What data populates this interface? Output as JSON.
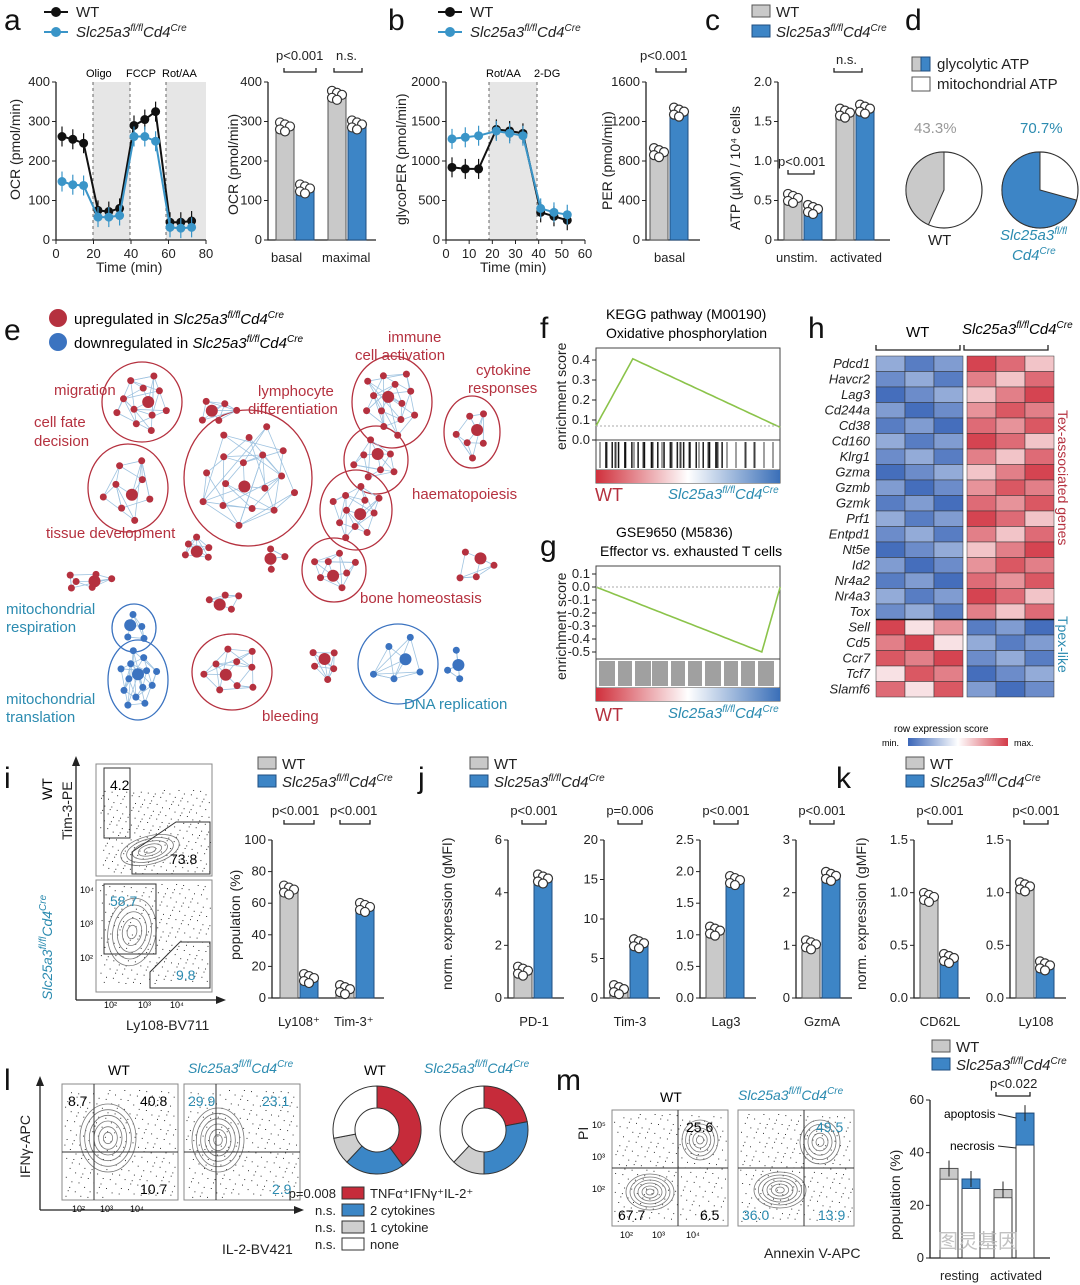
{
  "legend": {
    "wt": "WT",
    "ko": "Slc25a3",
    "ko_sup": "fl/fl",
    "ko_cre": "Cd4",
    "ko_cre_sup": "Cre"
  },
  "panels": {
    "a": {
      "label": "a",
      "line_ylabel": "OCR (pmol/min)",
      "xlabel": "Time (min)",
      "xticks": [
        "0",
        "20",
        "40",
        "60",
        "80"
      ],
      "yticks": [
        "0",
        "100",
        "200",
        "300",
        "400"
      ],
      "phases": [
        "Oligo",
        "FCCP",
        "Rot/AA"
      ],
      "bar_ylabel": "OCR (pmol/min)",
      "bar_yticks": [
        "0",
        "100",
        "200",
        "300",
        "400"
      ],
      "bar_cats": [
        "basal",
        "maximal"
      ],
      "stats": [
        "p<0.001",
        "n.s."
      ]
    },
    "b": {
      "label": "b",
      "line_ylabel": "glycoPER (pmol/min)",
      "xlabel": "Time (min)",
      "xticks": [
        "0",
        "10",
        "20",
        "30",
        "40",
        "50",
        "60"
      ],
      "yticks": [
        "0",
        "500",
        "1000",
        "1500",
        "2000"
      ],
      "phases": [
        "Rot/AA",
        "2-DG"
      ],
      "bar_ylabel": "PER (pmol/min)",
      "bar_yticks": [
        "0",
        "400",
        "800",
        "1200",
        "1600"
      ],
      "bar_cats": [
        "basal"
      ],
      "stats": [
        "p<0.001"
      ]
    },
    "c": {
      "label": "c",
      "ylabel": "ATP (µM) / 10⁴ cells",
      "yticks": [
        "0",
        "0.5",
        "1.0",
        "1.5",
        "2.0"
      ],
      "cats": [
        "unstim.",
        "activated"
      ],
      "stats": [
        "p<0.001",
        "n.s."
      ]
    },
    "d": {
      "label": "d",
      "legend": [
        "glycolytic ATP",
        "mitochondrial ATP"
      ],
      "pct_wt": "43.3%",
      "pct_ko": "70.7%",
      "wt_label": "WT"
    },
    "e": {
      "label": "e",
      "legend_up": "upregulated in",
      "legend_down": "downregulated in",
      "clusters_red": [
        "migration",
        "cell fate decision",
        "lymphocyte differentiation",
        "immune cell activation",
        "cytokine responses",
        "tissue development",
        "haematopoiesis",
        "bone homeostasis",
        "bleeding"
      ],
      "clusters_blue": [
        "mitochondrial respiration",
        "mitochondrial translation",
        "DNA replication"
      ]
    },
    "f": {
      "label": "f",
      "title1": "KEGG pathway (M00190)",
      "title2": "Oxidative phosphorylation",
      "ylabel": "enrichment score",
      "yticks": [
        "0.4",
        "0.3",
        "0.2",
        "0.1",
        "0.0"
      ],
      "left": "WT"
    },
    "g": {
      "label": "g",
      "title1": "GSE9650 (M5836)",
      "title2": "Effector vs. exhausted T cells",
      "ylabel": "enrichment score",
      "yticks": [
        "0.1",
        "0.0",
        "-0.1",
        "-0.2",
        "-0.3",
        "-0.4",
        "-0.5"
      ],
      "left": "WT"
    },
    "h": {
      "label": "h",
      "col_wt": "WT",
      "genes": [
        "Pdcd1",
        "Havcr2",
        "Lag3",
        "Cd244a",
        "Cd38",
        "Cd160",
        "Klrg1",
        "Gzma",
        "Gzmb",
        "Gzmk",
        "Prf1",
        "Entpd1",
        "Nt5e",
        "Id2",
        "Nr4a2",
        "Nr4a3",
        "Tox",
        "Sell",
        "Cd5",
        "Ccr7",
        "Tcf7",
        "Slamf6"
      ],
      "side_red": "Tex-associated genes",
      "side_blue": "Tpex-like",
      "scale_title": "row expression score",
      "scale_min": "min.",
      "scale_max": "max."
    },
    "i": {
      "label": "i",
      "y_axis": "Tim-3-PE",
      "x_axis": "Ly108-BV711",
      "wt_row": "WT",
      "wt_q1": "4.2",
      "wt_q2": "73.8",
      "ko_q1": "58.7",
      "ko_q2": "9.8",
      "ylabel": "population (%)",
      "yticks": [
        "0",
        "20",
        "40",
        "60",
        "80",
        "100"
      ],
      "cats": [
        "Ly108⁺",
        "Tim-3⁺"
      ],
      "stats": [
        "p<0.001",
        "p<0.001"
      ]
    },
    "j": {
      "label": "j",
      "ylabel": "norm. expression (gMFI)",
      "subs": [
        {
          "cat": "PD-1",
          "stat": "p<0.001",
          "yticks": [
            "0",
            "2",
            "4",
            "6"
          ]
        },
        {
          "cat": "Tim-3",
          "stat": "p=0.006",
          "yticks": [
            "0",
            "5",
            "10",
            "15",
            "20"
          ]
        },
        {
          "cat": "Lag3",
          "stat": "p<0.001",
          "yticks": [
            "0.0",
            "0.5",
            "1.0",
            "1.5",
            "2.0",
            "2.5"
          ]
        },
        {
          "cat": "GzmA",
          "stat": "p<0.001",
          "yticks": [
            "0",
            "1",
            "2",
            "3"
          ]
        }
      ]
    },
    "k": {
      "label": "k",
      "ylabel": "norm. expression (gMFI)",
      "subs": [
        {
          "cat": "CD62L",
          "stat": "p<0.001",
          "yticks": [
            "0.0",
            "0.5",
            "1.0",
            "1.5"
          ]
        },
        {
          "cat": "Ly108",
          "stat": "p<0.001",
          "yticks": [
            "0.0",
            "0.5",
            "1.0",
            "1.5"
          ]
        }
      ]
    },
    "l": {
      "label": "l",
      "y_axis": "IFNγ-APC",
      "x_axis": "IL-2-BV421",
      "wt": "WT",
      "wt_q": [
        "8.7",
        "40.8",
        "10.7"
      ],
      "ko_q": [
        "29.9",
        "23.1",
        "2.9"
      ],
      "legend": [
        {
          "p": "p=0.008",
          "t": "TNFα⁺IFNγ⁺IL-2⁺"
        },
        {
          "p": "n.s.",
          "t": "2 cytokines"
        },
        {
          "p": "n.s.",
          "t": "1 cytokine"
        },
        {
          "p": "n.s.",
          "t": "none"
        }
      ]
    },
    "m": {
      "label": "m",
      "y_axis": "PI",
      "x_axis": "Annexin V-APC",
      "wt": "WT",
      "wt_q": [
        "25.6",
        "67.7",
        "6.5"
      ],
      "ko_q": [
        "49.5",
        "36.0",
        "13.9"
      ],
      "ylabel": "population (%)",
      "yticks": [
        "0",
        "20",
        "40",
        "60"
      ],
      "cats": [
        "resting",
        "activated"
      ],
      "stat": "p<0.022",
      "ann1": "apoptosis",
      "ann2": "necrosis"
    }
  },
  "watermark": "图灵基因",
  "chart_data": [
    {
      "type": "line",
      "title": "a OCR",
      "x": [
        0,
        6,
        12,
        20,
        26,
        32,
        40,
        46,
        52,
        60,
        66,
        72
      ],
      "series": [
        {
          "name": "WT",
          "values": [
            262,
            255,
            245,
            75,
            72,
            80,
            290,
            305,
            325,
            45,
            45,
            48
          ]
        },
        {
          "name": "KO",
          "values": [
            148,
            140,
            138,
            58,
            58,
            62,
            262,
            262,
            250,
            32,
            30,
            32
          ]
        }
      ],
      "ylim": [
        0,
        400
      ]
    },
    {
      "type": "bar",
      "title": "a OCR bars",
      "categories": [
        "basal",
        "maximal"
      ],
      "series": [
        {
          "name": "WT",
          "values": [
            285,
            365
          ]
        },
        {
          "name": "KO",
          "values": [
            128,
            290
          ]
        }
      ]
    },
    {
      "type": "line",
      "title": "b glycoPER",
      "x": [
        0,
        6,
        12,
        20,
        26,
        32,
        40,
        46,
        52
      ],
      "series": [
        {
          "name": "WT",
          "values": [
            920,
            900,
            900,
            1400,
            1380,
            1350,
            350,
            300,
            250
          ]
        },
        {
          "name": "KO",
          "values": [
            1280,
            1300,
            1320,
            1380,
            1350,
            1320,
            400,
            350,
            320
          ]
        }
      ],
      "ylim": [
        0,
        2000
      ]
    },
    {
      "type": "bar",
      "title": "b PER",
      "categories": [
        "basal"
      ],
      "series": [
        {
          "name": "WT",
          "values": [
            880
          ]
        },
        {
          "name": "KO",
          "values": [
            1290
          ]
        }
      ]
    },
    {
      "type": "bar",
      "title": "c ATP",
      "categories": [
        "unstim.",
        "activated"
      ],
      "series": [
        {
          "name": "WT",
          "values": [
            0.52,
            1.6
          ]
        },
        {
          "name": "KO",
          "values": [
            0.38,
            1.65
          ]
        }
      ]
    },
    {
      "type": "pie",
      "title": "d",
      "series": [
        {
          "name": "WT glycolytic",
          "values": [
            43.3
          ]
        },
        {
          "name": "KO glycolytic",
          "values": [
            70.7
          ]
        }
      ]
    },
    {
      "type": "bar",
      "title": "i",
      "categories": [
        "Ly108+",
        "Tim-3+"
      ],
      "series": [
        {
          "name": "WT",
          "values": [
            68,
            5
          ]
        },
        {
          "name": "KO",
          "values": [
            12,
            57
          ]
        }
      ]
    },
    {
      "type": "bar",
      "title": "j PD-1",
      "categories": [
        "PD-1"
      ],
      "series": [
        {
          "name": "WT",
          "values": [
            1.0
          ]
        },
        {
          "name": "KO",
          "values": [
            4.5
          ]
        }
      ],
      "ylim": [
        0,
        6
      ]
    },
    {
      "type": "bar",
      "title": "j Tim-3",
      "categories": [
        "Tim-3"
      ],
      "series": [
        {
          "name": "WT",
          "values": [
            1.0
          ]
        },
        {
          "name": "KO",
          "values": [
            6.8
          ]
        }
      ],
      "ylim": [
        0,
        20
      ]
    },
    {
      "type": "bar",
      "title": "j Lag3",
      "categories": [
        "Lag3"
      ],
      "series": [
        {
          "name": "WT",
          "values": [
            1.05
          ]
        },
        {
          "name": "KO",
          "values": [
            1.85
          ]
        }
      ],
      "ylim": [
        0,
        2.5
      ]
    },
    {
      "type": "bar",
      "title": "j GzmA",
      "categories": [
        "GzmA"
      ],
      "series": [
        {
          "name": "WT",
          "values": [
            1.0
          ]
        },
        {
          "name": "KO",
          "values": [
            2.3
          ]
        }
      ],
      "ylim": [
        0,
        3
      ]
    },
    {
      "type": "bar",
      "title": "k CD62L",
      "categories": [
        "CD62L"
      ],
      "series": [
        {
          "name": "WT",
          "values": [
            0.95
          ]
        },
        {
          "name": "KO",
          "values": [
            0.37
          ]
        }
      ],
      "ylim": [
        0,
        1.5
      ]
    },
    {
      "type": "bar",
      "title": "k Ly108",
      "categories": [
        "Ly108"
      ],
      "series": [
        {
          "name": "WT",
          "values": [
            1.05
          ]
        },
        {
          "name": "KO",
          "values": [
            0.3
          ]
        }
      ],
      "ylim": [
        0,
        1.5
      ]
    },
    {
      "type": "bar",
      "title": "m",
      "categories": [
        "resting",
        "activated"
      ],
      "series": [
        {
          "name": "WT",
          "values": [
            34,
            26
          ]
        },
        {
          "name": "KO",
          "values": [
            30,
            55
          ]
        }
      ],
      "ylim": [
        0,
        60
      ]
    }
  ]
}
